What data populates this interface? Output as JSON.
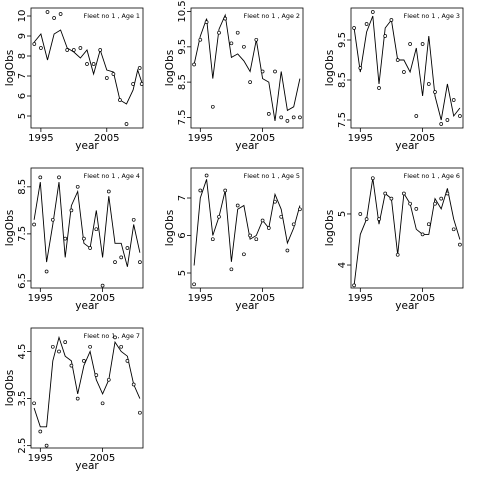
{
  "chart_data": [
    {
      "type": "line",
      "title": "Fleet no 1 , Age 1",
      "xlabel": "year",
      "ylabel": "logObs",
      "xlim": [
        1993.5,
        2010.5
      ],
      "ylim": [
        4.4,
        10.4
      ],
      "xticks": [
        1995,
        2005
      ],
      "yticks": [
        5,
        6,
        7,
        8,
        9,
        10
      ],
      "x": [
        1994,
        1995,
        1996,
        1997,
        1998,
        1999,
        2000,
        2001,
        2002,
        2003,
        2004,
        2005,
        2006,
        2007,
        2008,
        2009,
        2010
      ],
      "observed": [
        8.6,
        8.4,
        10.2,
        9.9,
        10.1,
        8.3,
        8.3,
        8.4,
        7.6,
        7.6,
        8.3,
        6.9,
        7.1,
        5.8,
        4.6,
        6.4,
        5.9
      ],
      "fitted": [
        8.7,
        9.1,
        7.8,
        9.1,
        9.3,
        8.4,
        8.2,
        7.9,
        8.3,
        7.1,
        8.3,
        7.3,
        7.2,
        5.8,
        5.6,
        7.3,
        6.3
      ],
      "observed_extra": [
        [
          2009,
          6.6
        ],
        [
          2010,
          7.4
        ],
        [
          2010.3,
          6.6
        ]
      ],
      "fitted_extra": [
        [
          2009,
          6.3
        ],
        [
          2009.7,
          7.3
        ],
        [
          2010.3,
          6.7
        ]
      ]
    },
    {
      "type": "line",
      "title": "Fleet no 1 , Age 2",
      "xlabel": "year",
      "ylabel": "logObs",
      "xlim": [
        1993.5,
        2011.5
      ],
      "ylim": [
        7.2,
        10.6
      ],
      "xticks": [
        1995,
        2005
      ],
      "yticks": [
        7.5,
        8.5,
        9.5,
        10.5
      ],
      "x": [
        1994,
        1995,
        1996,
        1997,
        1998,
        1999,
        2000,
        2001,
        2002,
        2003,
        2004,
        2005,
        2006,
        2007,
        2008,
        2009,
        2010,
        2011
      ],
      "observed": [
        9.0,
        9.7,
        10.2,
        7.8,
        9.9,
        10.3,
        9.6,
        9.9,
        9.5,
        8.5,
        9.7,
        8.8,
        7.6,
        8.8,
        7.5,
        7.4,
        7.5,
        7.5
      ],
      "fitted": [
        9.0,
        9.8,
        10.3,
        8.6,
        10.0,
        10.4,
        9.2,
        9.3,
        9.1,
        8.8,
        9.7,
        8.6,
        8.5,
        7.4,
        8.8,
        7.7,
        7.8,
        8.6
      ]
    },
    {
      "type": "line",
      "title": "Fleet no 1 , Age 3",
      "xlabel": "year",
      "ylabel": "logObs",
      "xlim": [
        1993.5,
        2011.5
      ],
      "ylim": [
        7.3,
        10.3
      ],
      "xticks": [
        1995,
        2005
      ],
      "yticks": [
        7.5,
        8.5,
        9.5
      ],
      "x": [
        1994,
        1995,
        1996,
        1997,
        1998,
        1999,
        2000,
        2001,
        2002,
        2003,
        2004,
        2005,
        2006,
        2007,
        2008,
        2009,
        2010,
        2011
      ],
      "observed": [
        9.8,
        8.8,
        9.9,
        10.2,
        8.3,
        9.6,
        10.0,
        9.0,
        8.7,
        9.4,
        7.6,
        9.4,
        8.4,
        8.2,
        7.4,
        7.5,
        8.0,
        7.6
      ],
      "fitted": [
        9.8,
        8.7,
        9.7,
        10.1,
        8.4,
        9.8,
        10.0,
        9.0,
        9.0,
        8.7,
        9.3,
        8.1,
        9.6,
        8.1,
        7.5,
        8.4,
        7.6,
        7.8
      ]
    },
    {
      "type": "line",
      "title": "Fleet no 1 , Age 4",
      "xlabel": "year",
      "ylabel": "logObs",
      "xlim": [
        1993.5,
        2011.5
      ],
      "ylim": [
        6.35,
        8.9
      ],
      "xticks": [
        1995,
        2005
      ],
      "yticks": [
        6.5,
        7.5,
        8.5
      ],
      "x": [
        1994,
        1995,
        1996,
        1997,
        1998,
        1999,
        2000,
        2001,
        2002,
        2003,
        2004,
        2005,
        2006,
        2007,
        2008,
        2009,
        2010,
        2011
      ],
      "observed": [
        7.7,
        8.7,
        6.7,
        7.8,
        8.7,
        7.4,
        8.0,
        8.5,
        7.4,
        7.2,
        7.6,
        6.4,
        8.4,
        6.9,
        7.0,
        7.2,
        7.8,
        6.9
      ],
      "fitted": [
        7.8,
        8.6,
        6.9,
        7.7,
        8.6,
        7.0,
        8.1,
        8.4,
        7.3,
        7.2,
        8.0,
        7.0,
        8.3,
        7.3,
        7.3,
        6.8,
        7.7,
        7.1
      ]
    },
    {
      "type": "line",
      "title": "Fleet no 1 , Age 5",
      "xlabel": "year",
      "ylabel": "logObs",
      "xlim": [
        1993.5,
        2011.5
      ],
      "ylim": [
        4.6,
        7.8
      ],
      "xticks": [
        1995,
        2005
      ],
      "yticks": [
        5.0,
        6.0,
        7.0
      ],
      "x": [
        1994,
        1995,
        1996,
        1997,
        1998,
        1999,
        2000,
        2001,
        2002,
        2003,
        2004,
        2005,
        2006,
        2007,
        2008,
        2009,
        2010,
        2011
      ],
      "observed": [
        4.7,
        7.2,
        7.6,
        5.9,
        6.5,
        7.2,
        5.1,
        6.8,
        5.5,
        6.0,
        5.9,
        6.4,
        6.2,
        6.9,
        6.5,
        5.6,
        6.3,
        6.7
      ],
      "fitted": [
        5.2,
        7.0,
        7.5,
        6.0,
        6.5,
        7.2,
        5.3,
        6.7,
        6.8,
        5.9,
        6.0,
        6.4,
        6.2,
        7.1,
        6.7,
        5.8,
        6.2,
        6.8
      ]
    },
    {
      "type": "line",
      "title": "Fleet no 1 , Age 6",
      "xlabel": "year",
      "ylabel": "logObs",
      "xlim": [
        1993.5,
        2011.5
      ],
      "ylim": [
        3.55,
        5.9
      ],
      "xticks": [
        1995,
        2005
      ],
      "yticks": [
        4.0,
        5.0
      ],
      "x": [
        1994,
        1995,
        1996,
        1997,
        1998,
        1999,
        2000,
        2001,
        2002,
        2003,
        2004,
        2005,
        2006,
        2007,
        2008,
        2009,
        2010,
        2011
      ],
      "observed": [
        3.6,
        5.0,
        4.9,
        5.7,
        4.9,
        5.4,
        5.3,
        4.2,
        5.4,
        5.2,
        5.1,
        4.6,
        4.8,
        5.2,
        5.3,
        5.4,
        4.7,
        4.4
      ],
      "fitted": [
        3.6,
        4.6,
        4.9,
        5.7,
        4.8,
        5.4,
        5.3,
        4.2,
        5.4,
        5.2,
        4.7,
        4.6,
        4.6,
        5.3,
        5.1,
        5.5,
        4.9,
        4.5
      ]
    },
    {
      "type": "line",
      "title": "Fleet no 1 , Age 7",
      "xlabel": "year",
      "ylabel": "logObs",
      "xlim": [
        1993.5,
        2011.5
      ],
      "ylim": [
        2.45,
        5.0
      ],
      "xticks": [
        1995,
        2005
      ],
      "yticks": [
        2.5,
        3.5,
        4.5
      ],
      "x": [
        1994,
        1995,
        1996,
        1997,
        1998,
        1999,
        2000,
        2001,
        2002,
        2003,
        2004,
        2005,
        2006,
        2007,
        2008,
        2009,
        2010,
        2011
      ],
      "observed": [
        3.4,
        2.8,
        2.5,
        4.6,
        4.5,
        4.7,
        4.2,
        3.5,
        4.3,
        4.6,
        4.0,
        3.4,
        3.9,
        4.8,
        4.6,
        4.3,
        3.8,
        3.2
      ],
      "fitted": [
        3.3,
        2.9,
        2.9,
        4.3,
        4.8,
        4.4,
        4.3,
        3.6,
        4.2,
        4.5,
        3.9,
        3.6,
        3.9,
        4.7,
        4.5,
        4.4,
        3.8,
        3.5
      ]
    }
  ]
}
